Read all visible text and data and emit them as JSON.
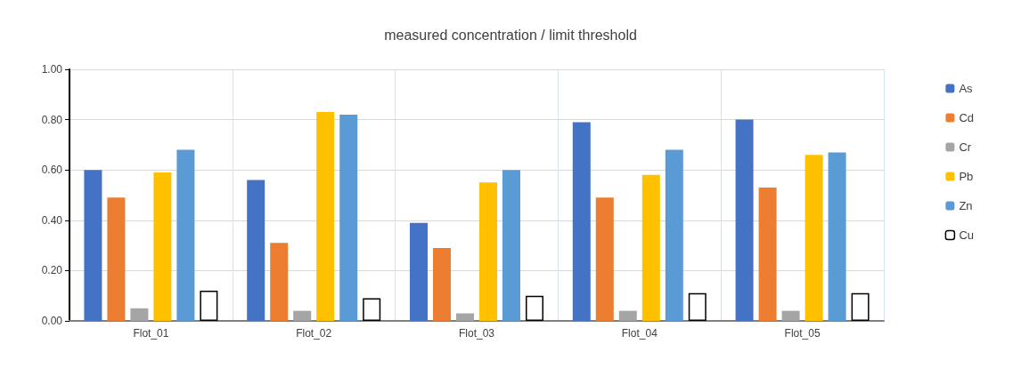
{
  "chart_data": {
    "type": "bar",
    "title": "measured concentration / limit threshold",
    "categories": [
      "Flot_01",
      "Flot_02",
      "Flot_03",
      "Flot_04",
      "Flot_05"
    ],
    "series": [
      {
        "name": "As",
        "color": "#4472c4",
        "values": [
          0.6,
          0.56,
          0.39,
          0.79,
          0.8
        ]
      },
      {
        "name": "Cd",
        "color": "#ed7d31",
        "values": [
          0.49,
          0.31,
          0.29,
          0.49,
          0.53
        ]
      },
      {
        "name": "Cr",
        "color": "#a5a5a5",
        "values": [
          0.05,
          0.04,
          0.03,
          0.04,
          0.04
        ]
      },
      {
        "name": "Pb",
        "color": "#ffc000",
        "values": [
          0.59,
          0.83,
          0.55,
          0.58,
          0.66
        ]
      },
      {
        "name": "Zn",
        "color": "#5b9bd5",
        "values": [
          0.68,
          0.82,
          0.6,
          0.68,
          0.67
        ]
      },
      {
        "name": "Cu",
        "color": "#ffffff",
        "values": [
          0.12,
          0.09,
          0.1,
          0.11,
          0.11
        ]
      }
    ],
    "ylim": [
      0,
      1
    ],
    "yticks": [
      {
        "value": 0,
        "label": "0.00"
      },
      {
        "value": 0.2,
        "label": "0.20"
      },
      {
        "value": 0.4,
        "label": "0.40"
      },
      {
        "value": 0.6,
        "label": "0.60"
      },
      {
        "value": 0.8,
        "label": "0.80"
      },
      {
        "value": 1,
        "label": "1.00"
      }
    ],
    "grid": true,
    "legend": "right"
  }
}
